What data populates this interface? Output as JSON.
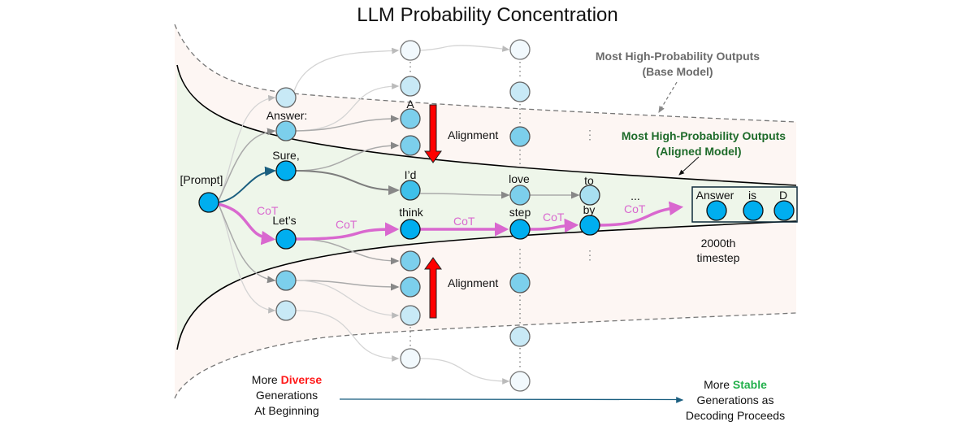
{
  "title": "LLM Probability Concentration",
  "labels": {
    "prompt": "[Prompt]",
    "answer_colon": "Answer:",
    "sure": "Sure,",
    "lets": "Let’s",
    "a": "A",
    "id": "I’d",
    "think": "think",
    "love": "love",
    "step": "step",
    "to": "to",
    "by": "by",
    "ellipsis": "...",
    "final_answer": "Answer",
    "final_is": "is",
    "final_d": "D",
    "cot": "CoT",
    "alignment_top": "Alignment",
    "alignment_bottom": "Alignment",
    "timestep_line1": "2000th",
    "timestep_line2": "timestep"
  },
  "annotations": {
    "base_model_line1": "Most High-Probability Outputs",
    "base_model_line2": "(Base Model)",
    "aligned_model_line1": "Most High-Probability Outputs",
    "aligned_model_line2": "(Aligned Model)"
  },
  "footer": {
    "left_prefix": "More ",
    "left_highlight": "Diverse",
    "left_line2": "Generations",
    "left_line3": "At Beginning",
    "right_prefix": "More ",
    "right_highlight": "Stable",
    "right_line2": "Generations as",
    "right_line3": "Decoding Proceeds"
  },
  "colors": {
    "outer_region": "#fdf6f3",
    "inner_region": "#eef6ea",
    "cot_path": "#d968cf",
    "alignment_arrow": "#ff0000",
    "diverse": "#ff1a1a",
    "stable": "#22b04b",
    "aligned_label": "#1e6b2a",
    "base_label": "#6b6b6b",
    "node_dark": "#00aeef"
  }
}
